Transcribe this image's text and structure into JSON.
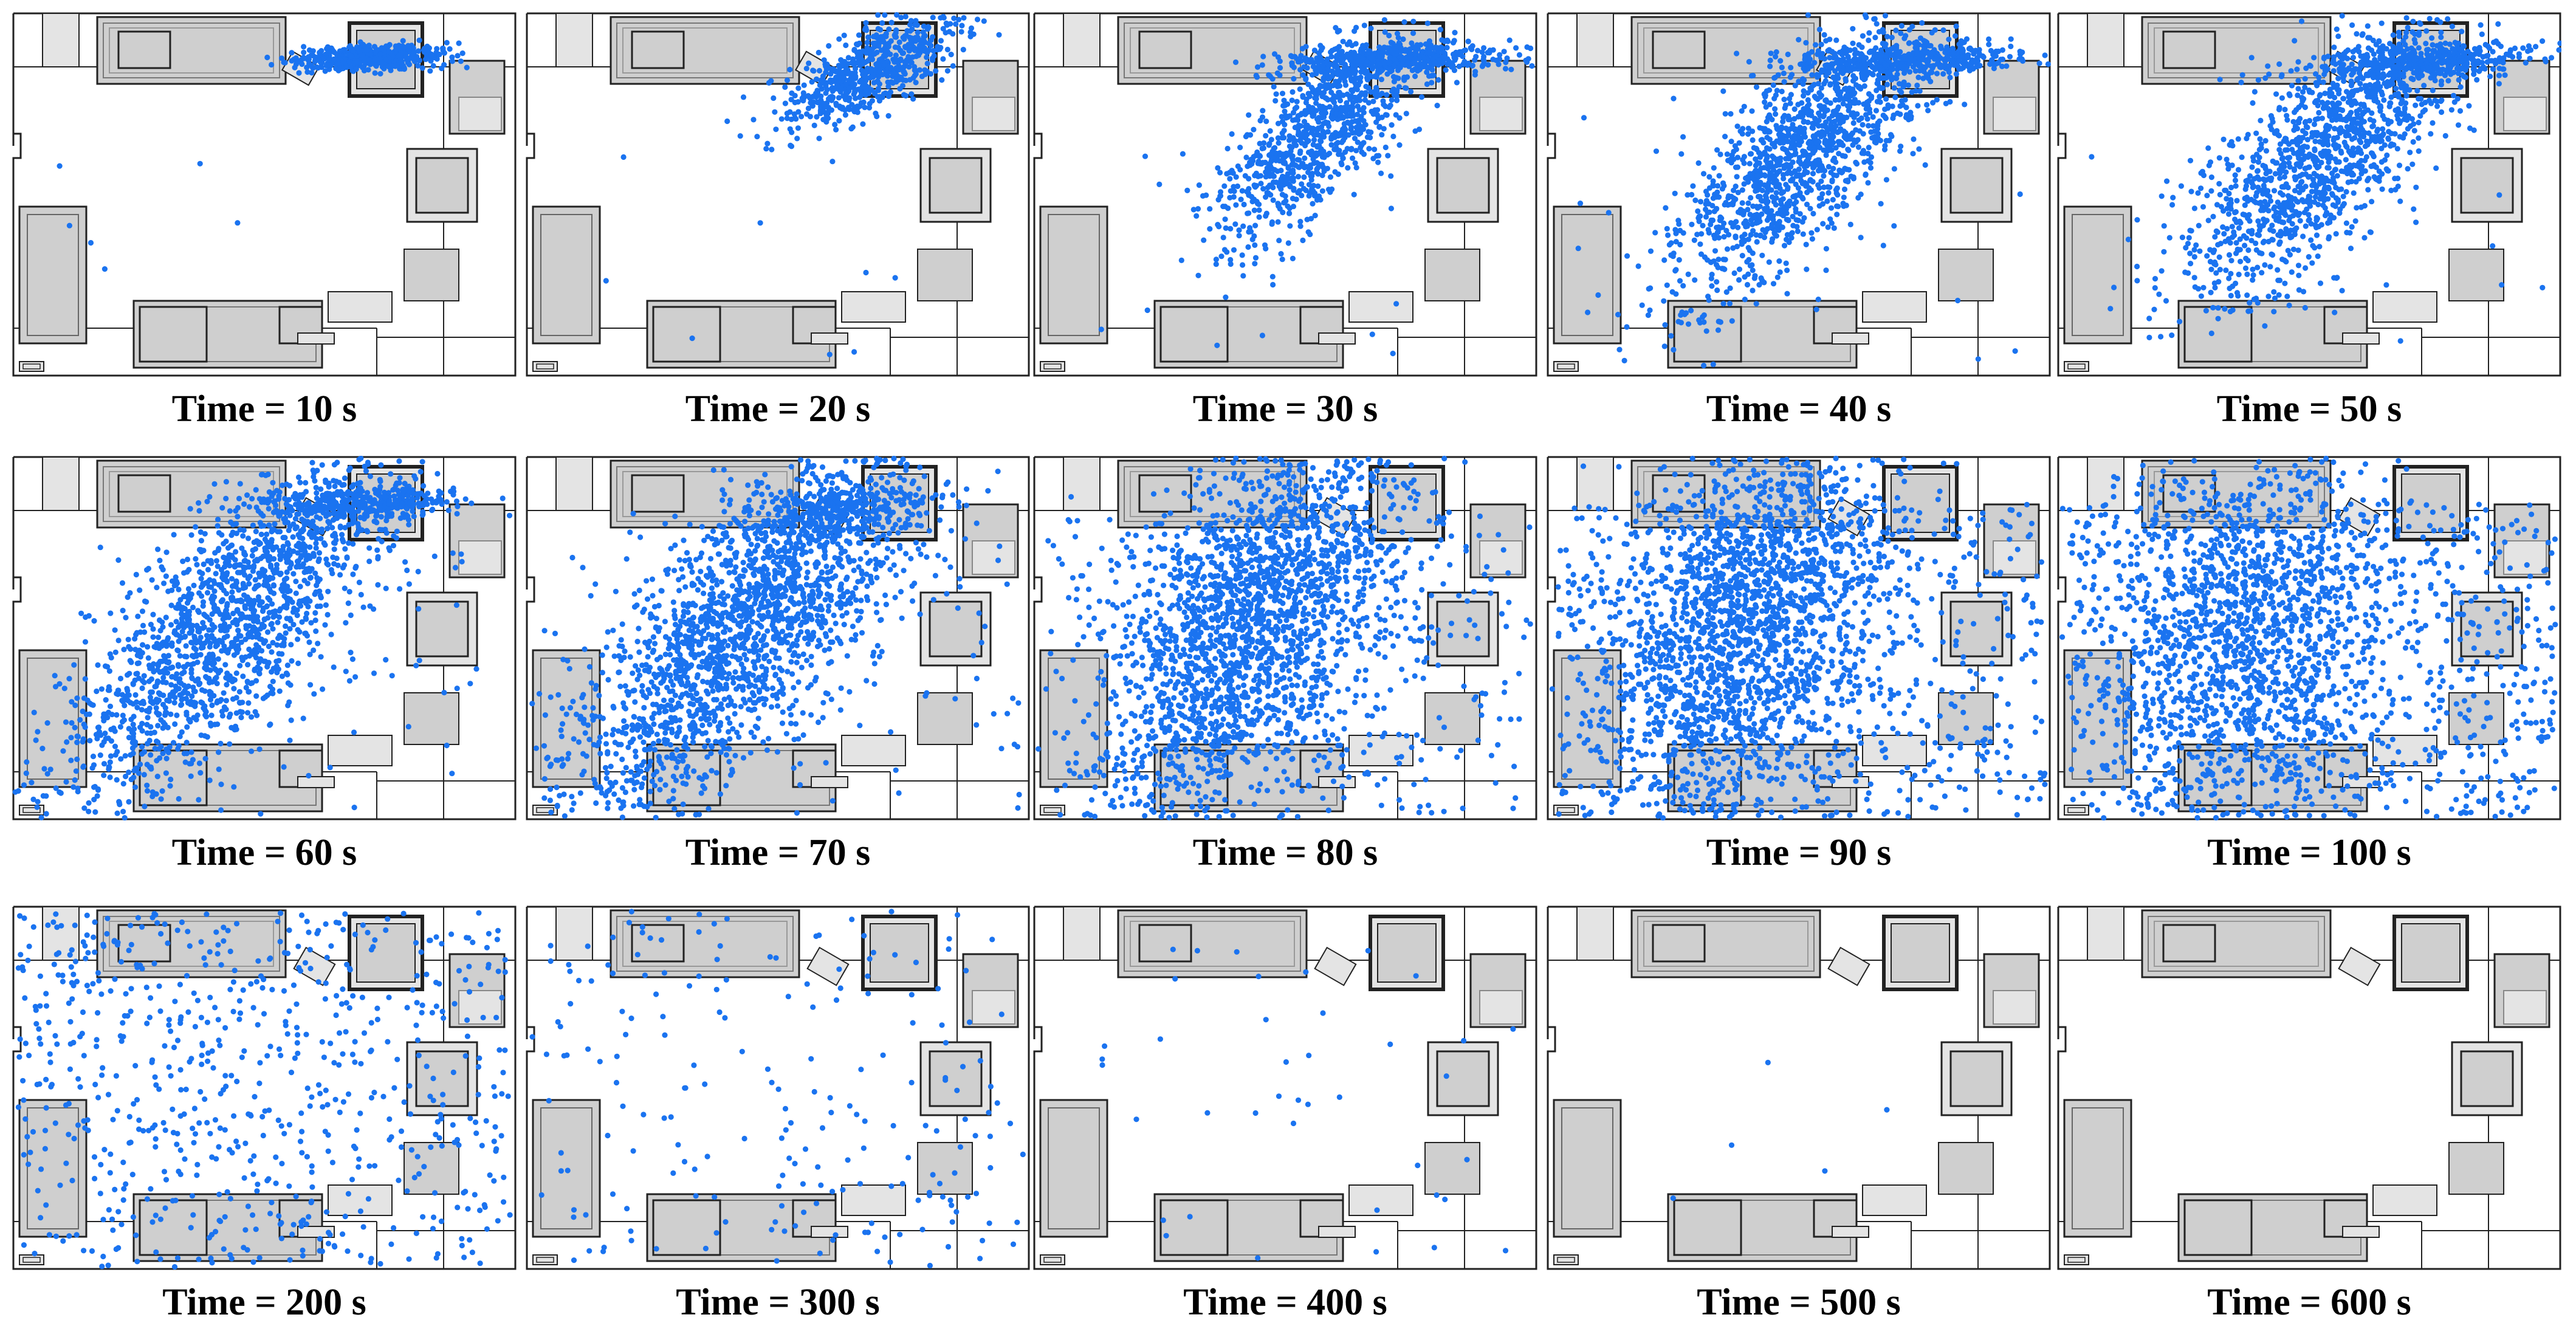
{
  "figure": {
    "panels": [
      {
        "label": "Time = 10 s",
        "t": 10,
        "stage": 0
      },
      {
        "label": "Time = 20 s",
        "t": 20,
        "stage": 1
      },
      {
        "label": "Time = 30 s",
        "t": 30,
        "stage": 2
      },
      {
        "label": "Time = 40 s",
        "t": 40,
        "stage": 3
      },
      {
        "label": "Time = 50 s",
        "t": 50,
        "stage": 4
      },
      {
        "label": "Time = 60 s",
        "t": 60,
        "stage": 5
      },
      {
        "label": "Time = 70 s",
        "t": 70,
        "stage": 6
      },
      {
        "label": "Time = 80 s",
        "t": 80,
        "stage": 7
      },
      {
        "label": "Time = 90 s",
        "t": 90,
        "stage": 8
      },
      {
        "label": "Time = 100 s",
        "t": 100,
        "stage": 9
      },
      {
        "label": "Time = 200 s",
        "t": 200,
        "stage": 10
      },
      {
        "label": "Time = 300 s",
        "t": 300,
        "stage": 11
      },
      {
        "label": "Time = 400 s",
        "t": 400,
        "stage": 12
      },
      {
        "label": "Time = 500 s",
        "t": 500,
        "stage": 13
      },
      {
        "label": "Time = 600 s",
        "t": 600,
        "stage": 14
      }
    ],
    "colors": {
      "particle": "#1a73f0",
      "furniture_fill": "#cfcfcf",
      "furniture_light": "#e4e4e4",
      "outline": "#222222",
      "background": "#ffffff"
    }
  }
}
